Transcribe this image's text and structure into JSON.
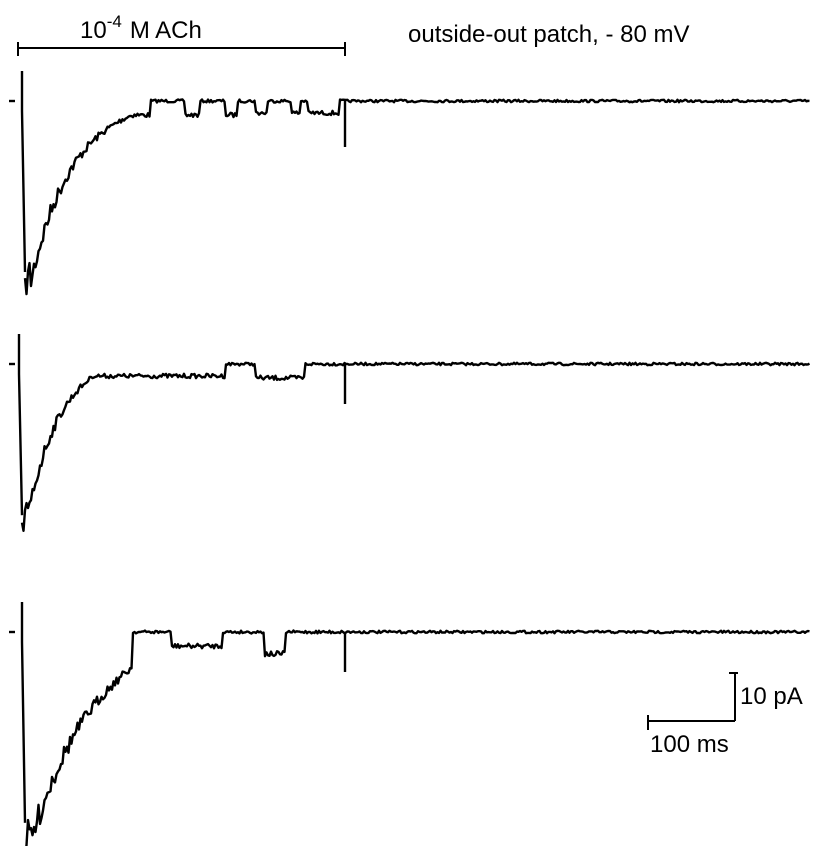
{
  "figure": {
    "agonist": {
      "base": "10",
      "exponent": "-4",
      "rest": "M  ACh"
    },
    "title": "outside-out patch, - 80 mV",
    "scale_current": "10 pA",
    "scale_time": "100 ms"
  }
}
